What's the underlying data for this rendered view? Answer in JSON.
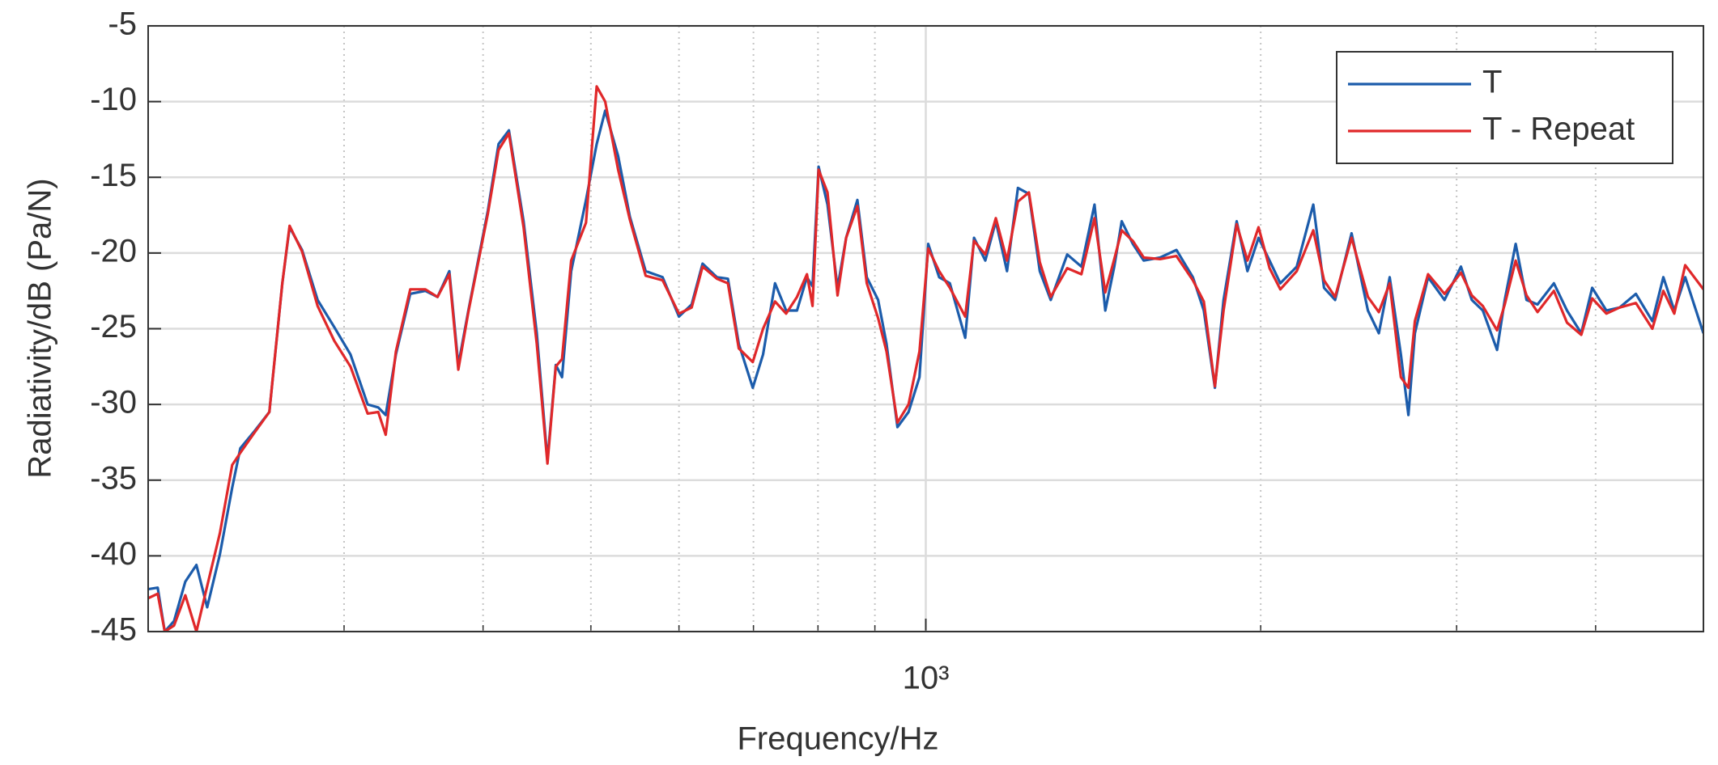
{
  "chart_data": {
    "type": "line",
    "xlabel": "Frequency/Hz",
    "ylabel": "Radiativity/dB (Pa/N)",
    "xscale": "log",
    "xlim": [
      200,
      5000
    ],
    "xticks": [
      {
        "value": 1000,
        "label": "10³"
      }
    ],
    "xminor_ticks": [
      300,
      400,
      500,
      600,
      700,
      800,
      900,
      2000,
      3000,
      4000
    ],
    "ylim": [
      -45,
      -5
    ],
    "yticks": [
      -45,
      -40,
      -35,
      -30,
      -25,
      -20,
      -15,
      -10,
      -5
    ],
    "grid": true,
    "legend": "upper right",
    "x": [
      200,
      204,
      207,
      211,
      216,
      221,
      226,
      232,
      238,
      242,
      249,
      257,
      264,
      268,
      275,
      284,
      294,
      304,
      315,
      322,
      327,
      334,
      344,
      355,
      364,
      373,
      380,
      388,
      404,
      413,
      422,
      435,
      447,
      457,
      465,
      471,
      480,
      495,
      506,
      515,
      529,
      542,
      560,
      580,
      600,
      616,
      630,
      649,
      664,
      679,
      699,
      714,
      732,
      749,
      766,
      782,
      791,
      801,
      816,
      833,
      848,
      868,
      885,
      906,
      922,
      943,
      965,
      987,
      1005,
      1028,
      1051,
      1085,
      1105,
      1131,
      1156,
      1183,
      1210,
      1238,
      1266,
      1295,
      1340,
      1380,
      1418,
      1450,
      1477,
      1500,
      1535,
      1570,
      1624,
      1680,
      1738,
      1778,
      1819,
      1852,
      1903,
      1946,
      1991,
      2037,
      2083,
      2155,
      2230,
      2280,
      2333,
      2414,
      2497,
      2554,
      2612,
      2673,
      2715,
      2752,
      2828,
      2926,
      3027,
      3096,
      3167,
      3262,
      3314,
      3390,
      3467,
      3547,
      3669,
      3770,
      3883,
      3972,
      4090,
      4203,
      4348,
      4498,
      4602,
      4707,
      4815,
      5000
    ],
    "series": [
      {
        "name": "T",
        "color": "#1c5cab",
        "values": [
          -42.2,
          -42.1,
          -45,
          -44.3,
          -41.7,
          -40.6,
          -43.4,
          -39.9,
          -35.5,
          -32.9,
          -31.8,
          -30.5,
          -22.0,
          -18.3,
          -19.8,
          -23.1,
          -24.9,
          -26.7,
          -30.0,
          -30.2,
          -30.7,
          -26.7,
          -22.7,
          -22.5,
          -22.9,
          -21.2,
          -27.4,
          -23.8,
          -17.2,
          -12.8,
          -11.9,
          -17.9,
          -25.3,
          -33.7,
          -27.4,
          -28.2,
          -21.2,
          -16.5,
          -12.8,
          -10.6,
          -13.6,
          -17.6,
          -21.2,
          -21.6,
          -24.2,
          -23.4,
          -20.7,
          -21.6,
          -21.7,
          -26.0,
          -28.9,
          -26.7,
          -22.0,
          -23.8,
          -23.8,
          -21.6,
          -22.2,
          -14.3,
          -16.8,
          -22.3,
          -19.0,
          -16.5,
          -21.6,
          -23.1,
          -26.0,
          -31.5,
          -30.5,
          -28.2,
          -19.4,
          -21.6,
          -22.0,
          -25.6,
          -19.0,
          -20.5,
          -17.9,
          -21.2,
          -15.7,
          -16.1,
          -21.2,
          -23.1,
          -20.1,
          -20.9,
          -16.8,
          -23.8,
          -20.9,
          -17.9,
          -19.4,
          -20.5,
          -20.3,
          -19.8,
          -21.6,
          -23.8,
          -28.9,
          -23.1,
          -17.9,
          -21.2,
          -19.0,
          -20.5,
          -22.0,
          -20.9,
          -16.8,
          -22.3,
          -23.1,
          -18.7,
          -23.8,
          -25.3,
          -21.6,
          -26.7,
          -30.7,
          -25.3,
          -21.6,
          -23.1,
          -20.9,
          -23.1,
          -23.8,
          -26.4,
          -23.1,
          -19.4,
          -23.1,
          -23.4,
          -22.0,
          -23.8,
          -25.3,
          -22.3,
          -23.8,
          -23.6,
          -22.7,
          -24.5,
          -21.6,
          -23.8,
          -21.6,
          -25.3
        ]
      },
      {
        "name": "T - Repeat",
        "color": "#e0282a",
        "values": [
          -42.8,
          -42.5,
          -45,
          -44.6,
          -42.6,
          -45,
          -42.0,
          -38.5,
          -34.0,
          -33.2,
          -31.9,
          -30.5,
          -22.0,
          -18.2,
          -19.9,
          -23.5,
          -25.8,
          -27.5,
          -30.6,
          -30.5,
          -32.0,
          -26.5,
          -22.4,
          -22.4,
          -22.9,
          -21.4,
          -27.7,
          -23.9,
          -17.4,
          -13.2,
          -12.1,
          -18.3,
          -26.0,
          -33.9,
          -27.5,
          -27.0,
          -20.5,
          -18.0,
          -9.0,
          -10.0,
          -14.5,
          -17.8,
          -21.5,
          -21.8,
          -24.0,
          -23.6,
          -20.9,
          -21.7,
          -22.0,
          -26.3,
          -27.2,
          -25.0,
          -23.2,
          -24.0,
          -22.9,
          -21.4,
          -23.5,
          -14.5,
          -16.0,
          -22.8,
          -19.0,
          -16.9,
          -22.0,
          -24.3,
          -26.5,
          -31.2,
          -30.0,
          -26.5,
          -19.7,
          -21.2,
          -22.3,
          -24.2,
          -19.2,
          -20.1,
          -17.7,
          -20.5,
          -16.6,
          -16.0,
          -20.6,
          -22.9,
          -21.0,
          -21.4,
          -17.7,
          -22.6,
          -20.4,
          -18.5,
          -19.2,
          -20.3,
          -20.4,
          -20.2,
          -21.8,
          -23.2,
          -28.8,
          -23.8,
          -18.1,
          -20.5,
          -18.3,
          -21.0,
          -22.4,
          -21.2,
          -18.5,
          -21.8,
          -22.9,
          -19.0,
          -22.9,
          -23.9,
          -22.0,
          -28.2,
          -28.9,
          -24.5,
          -21.4,
          -22.7,
          -21.3,
          -22.8,
          -23.5,
          -25.1,
          -23.4,
          -20.5,
          -22.8,
          -23.9,
          -22.5,
          -24.6,
          -25.4,
          -23.0,
          -24.0,
          -23.6,
          -23.3,
          -25.0,
          -22.5,
          -24.0,
          -20.8,
          -22.4
        ]
      }
    ]
  }
}
